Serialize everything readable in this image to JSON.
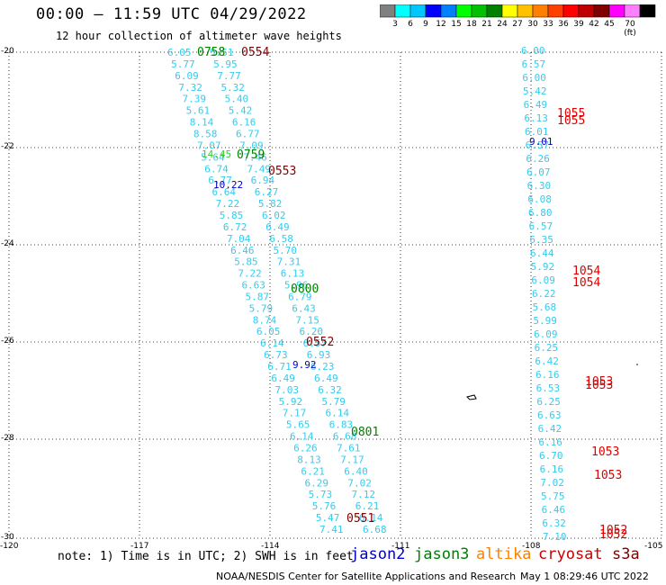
{
  "title": "00:00 – 11:59 UTC 04/29/2022",
  "subtitle": "12 hour collection of altimeter wave heights",
  "colorbar": {
    "colors": [
      "#808080",
      "#00ffff",
      "#00c8ff",
      "#0000ff",
      "#0080ff",
      "#00ff00",
      "#00c000",
      "#008000",
      "#ffff00",
      "#ffc000",
      "#ff8000",
      "#ff4000",
      "#ff0000",
      "#c00000",
      "#800000",
      "#ff00ff",
      "#ff80ff",
      "#000000"
    ],
    "labels": [
      "3",
      "6",
      "9",
      "12",
      "15",
      "18",
      "21",
      "24",
      "27",
      "30",
      "33",
      "36",
      "39",
      "42",
      "45",
      "70 (ft)"
    ]
  },
  "axes": {
    "lat_labels": [
      "-20",
      "-22",
      "-24",
      "-26",
      "-28",
      "-30"
    ],
    "lon_labels": [
      "-120",
      "-117",
      "-114",
      "-111",
      "-108",
      "-105"
    ]
  },
  "track_a": {
    "color": "#33ccee",
    "values": [
      "6.05",
      "5.77",
      "6.09",
      "7.32",
      "7.39",
      "5.61",
      "8.14",
      "8.58",
      "7.07",
      "5.64",
      "6.74",
      "6.77",
      "6.64",
      "7.22",
      "5.85",
      "6.72",
      "7.04",
      "6.46",
      "5.85",
      "7.22",
      "6.63",
      "5.87",
      "5.79",
      "8.74",
      "6.05",
      "6.14",
      "6.73",
      "6.71",
      "6.49",
      "7.03",
      "5.92",
      "7.17",
      "5.65",
      "6.14",
      "6.26",
      "8.13",
      "6.21",
      "6.29",
      "5.73",
      "5.76",
      "5.47",
      "7.41"
    ]
  },
  "track_b": {
    "color": "#33ccee",
    "values": [
      "5.51",
      "5.95",
      "7.77",
      "5.32",
      "5.40",
      "5.42",
      "6.16",
      "6.77",
      "7.09",
      "7.46",
      "7.49",
      "6.94",
      "6.27",
      "5.82",
      "6.02",
      "6.49",
      "6.58",
      "5.70",
      "7.31",
      "6.13",
      "5.96",
      "6.79",
      "6.43",
      "7.15",
      "6.20",
      "6.57",
      "6.93",
      "6.23",
      "6.49",
      "6.32",
      "5.79",
      "6.14",
      "6.83",
      "6.68",
      "7.61",
      "7.17",
      "6.40",
      "7.02",
      "7.12",
      "6.21",
      "6.14",
      "6.68"
    ]
  },
  "track_c": {
    "color": "#33ccee",
    "values": [
      "6.00",
      "6.57",
      "6.00",
      "5.42",
      "6.49",
      "6.13",
      "6.01",
      "6.57",
      "6.26",
      "6.07",
      "6.30",
      "6.08",
      "6.80",
      "6.57",
      "6.35",
      "6.44",
      "5.92",
      "6.09",
      "6.22",
      "5.68",
      "5.99",
      "6.09",
      "6.25",
      "6.42",
      "6.16",
      "6.53",
      "6.25",
      "6.63",
      "6.42",
      "6.16",
      "6.70",
      "6.16",
      "7.02",
      "5.75",
      "6.46",
      "6.32",
      "7.10"
    ]
  },
  "special_values": [
    {
      "text": "14.45",
      "color": "#33cc33"
    },
    {
      "text": "10.22",
      "color": "#0000cc"
    },
    {
      "text": "9.92",
      "color": "#0000cc"
    },
    {
      "text": "9.01",
      "color": "#0000cc"
    }
  ],
  "time_labels": [
    {
      "text": "0758",
      "color": "#008000"
    },
    {
      "text": "0554",
      "color": "#800000"
    },
    {
      "text": "0759",
      "color": "#008000"
    },
    {
      "text": "0553",
      "color": "#800000"
    },
    {
      "text": "0800",
      "color": "#008000"
    },
    {
      "text": "0552",
      "color": "#800000"
    },
    {
      "text": "0801",
      "color": "#008000"
    },
    {
      "text": "0551",
      "color": "#800000"
    },
    {
      "text": "1055",
      "color": "#e00000"
    },
    {
      "text": "1055",
      "color": "#e00000"
    },
    {
      "text": "1054",
      "color": "#e00000"
    },
    {
      "text": "1054",
      "color": "#e00000"
    },
    {
      "text": "1053",
      "color": "#e00000"
    },
    {
      "text": "1053",
      "color": "#e00000"
    },
    {
      "text": "1053",
      "color": "#e00000"
    },
    {
      "text": "1053",
      "color": "#e00000"
    },
    {
      "text": "1052",
      "color": "#e00000"
    },
    {
      "text": "1052",
      "color": "#e00000"
    }
  ],
  "note": "note: 1) Time is in UTC; 2) SWH is in feet",
  "legend": [
    {
      "name": "jason2",
      "color": "#0000cc"
    },
    {
      "name": "jason3",
      "color": "#008000"
    },
    {
      "name": "altika",
      "color": "#ff8000"
    },
    {
      "name": "cryosat",
      "color": "#cc0000"
    },
    {
      "name": "s3a",
      "color": "#800000"
    }
  ],
  "credit": "NOAA/NESDIS Center for Satellite Applications and Research",
  "credit_date": "May  1 08:29:46 UTC 2022"
}
